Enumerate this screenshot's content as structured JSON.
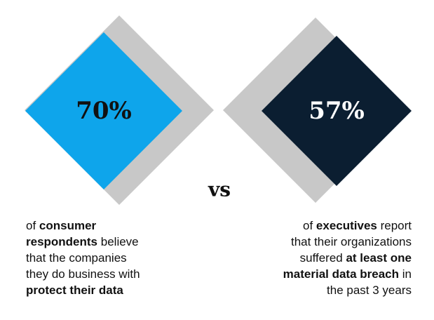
{
  "left": {
    "stat": "70%",
    "lines": [
      [
        {
          "text": "of ",
          "bold": false
        },
        {
          "text": "consumer",
          "bold": true
        }
      ],
      [
        {
          "text": "respondents",
          "bold": true
        },
        {
          "text": " believe",
          "bold": false
        }
      ],
      [
        {
          "text": "that the companies",
          "bold": false
        }
      ],
      [
        {
          "text": "they do business with",
          "bold": false
        }
      ],
      [
        {
          "text": "protect their data",
          "bold": true
        }
      ]
    ]
  },
  "separator": "vs",
  "right": {
    "stat": "57%",
    "lines": [
      [
        {
          "text": "of ",
          "bold": false
        },
        {
          "text": "executives",
          "bold": true
        },
        {
          "text": " report",
          "bold": false
        }
      ],
      [
        {
          "text": "that their organizations",
          "bold": false
        }
      ],
      [
        {
          "text": "suffered ",
          "bold": false
        },
        {
          "text": "at least one",
          "bold": true
        }
      ],
      [
        {
          "text": "material data breach",
          "bold": true
        },
        {
          "text": " in",
          "bold": false
        }
      ],
      [
        {
          "text": "the past 3 years",
          "bold": false
        }
      ]
    ]
  }
}
